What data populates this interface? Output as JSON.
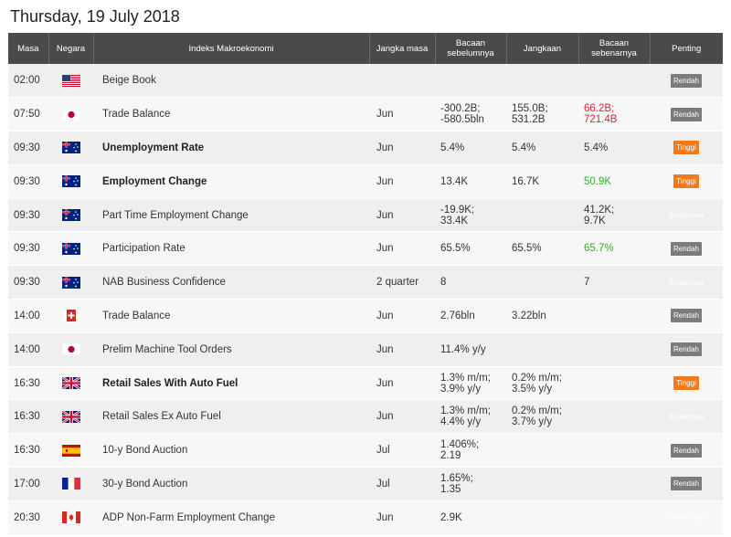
{
  "page_title": "Thursday, 19 July 2018",
  "columns": {
    "time": "Masa",
    "country": "Negara",
    "indicator": "Indeks Makroekonomi",
    "period": "Jangka masa",
    "previous": "Bacaan sebelumnya",
    "forecast": "Jangkaan",
    "actual": "Bacaan sebenarnya",
    "importance": "Penting"
  },
  "colors": {
    "header_bg": "#4a4a4a",
    "low": "#7b7b7b",
    "high": "#f07a1c",
    "medium": "#33a547",
    "red_value": "#e0262b",
    "green_value": "#3aa830"
  },
  "rows": [
    {
      "time": "02:00",
      "flag": "us-flag-icon",
      "indicator": "Beige Book",
      "bold": false,
      "period": "",
      "previous": "",
      "forecast": "",
      "actual": "",
      "actual_color": "",
      "importance": "Rendah",
      "level": "low"
    },
    {
      "time": "07:50",
      "flag": "jp-flag-icon",
      "indicator": "Trade Balance",
      "bold": false,
      "period": "Jun",
      "previous": "-300.2B;\n-580.5bln",
      "forecast": "155.0B;\n531.2B",
      "actual": "66.2B;\n721.4B",
      "actual_color": "red",
      "importance": "Rendah",
      "level": "low"
    },
    {
      "time": "09:30",
      "flag": "au-flag-icon",
      "indicator": "Unemployment Rate",
      "bold": true,
      "period": "Jun",
      "previous": "5.4%",
      "forecast": "5.4%",
      "actual": "5.4%",
      "actual_color": "",
      "importance": "Tinggi",
      "level": "high"
    },
    {
      "time": "09:30",
      "flag": "au-flag-icon",
      "indicator": "Employment Change",
      "bold": true,
      "period": "Jun",
      "previous": "13.4K",
      "forecast": "16.7K",
      "actual": "50.9K",
      "actual_color": "green",
      "importance": "Tinggi",
      "level": "high"
    },
    {
      "time": "09:30",
      "flag": "au-flag-icon",
      "indicator": "Part Time Employment Change",
      "bold": false,
      "period": "Jun",
      "previous": "-19.9K;\n33.4K",
      "forecast": "",
      "actual": "41.2K;\n9.7K",
      "actual_color": "",
      "importance": "Sederhana",
      "level": "medium"
    },
    {
      "time": "09:30",
      "flag": "au-flag-icon",
      "indicator": "Participation Rate",
      "bold": false,
      "period": "Jun",
      "previous": "65.5%",
      "forecast": "65.5%",
      "actual": "65.7%",
      "actual_color": "green",
      "importance": "Rendah",
      "level": "low"
    },
    {
      "time": "09:30",
      "flag": "au-flag-icon",
      "indicator": "NAB Business Confidence",
      "bold": false,
      "period": "2 quarter",
      "previous": "8",
      "forecast": "",
      "actual": "7",
      "actual_color": "",
      "importance": "Sederhana",
      "level": "medium"
    },
    {
      "time": "14:00",
      "flag": "ch-flag-icon",
      "indicator": "Trade Balance",
      "bold": false,
      "period": "Jun",
      "previous": "2.76bln",
      "forecast": "3.22bln",
      "actual": "",
      "actual_color": "",
      "importance": "Rendah",
      "level": "low"
    },
    {
      "time": "14:00",
      "flag": "jp-flag-icon",
      "indicator": "Prelim Machine Tool Orders",
      "bold": false,
      "period": "Jun",
      "previous": "11.4% y/y",
      "forecast": "",
      "actual": "",
      "actual_color": "",
      "importance": "Rendah",
      "level": "low"
    },
    {
      "time": "16:30",
      "flag": "gb-flag-icon",
      "indicator": "Retail Sales With Auto Fuel",
      "bold": true,
      "period": "Jun",
      "previous": "1.3% m/m;\n3.9% y/y",
      "forecast": "0.2% m/m;\n3.5% y/y",
      "actual": "",
      "actual_color": "",
      "importance": "Tinggi",
      "level": "high"
    },
    {
      "time": "16:30",
      "flag": "gb-flag-icon",
      "indicator": "Retail Sales Ex Auto Fuel",
      "bold": false,
      "period": "Jun",
      "previous": "1.3% m/m;\n4.4% y/y",
      "forecast": "0.2% m/m;\n3.7% y/y",
      "actual": "",
      "actual_color": "",
      "importance": "Sederhana",
      "level": "medium"
    },
    {
      "time": "16:30",
      "flag": "es-flag-icon",
      "indicator": "10-y Bond Auction",
      "bold": false,
      "period": "Jul",
      "previous": "1.406%;\n2.19",
      "forecast": "",
      "actual": "",
      "actual_color": "",
      "importance": "Rendah",
      "level": "low"
    },
    {
      "time": "17:00",
      "flag": "fr-flag-icon",
      "indicator": "30-y Bond Auction",
      "bold": false,
      "period": "Jul",
      "previous": "1.65%;\n1.35",
      "forecast": "",
      "actual": "",
      "actual_color": "",
      "importance": "Rendah",
      "level": "low"
    },
    {
      "time": "20:30",
      "flag": "ca-flag-icon",
      "indicator": "ADP Non-Farm Employment Change",
      "bold": false,
      "period": "Jun",
      "previous": "2.9K",
      "forecast": "",
      "actual": "",
      "actual_color": "",
      "importance": "Sederhana",
      "level": "medium"
    }
  ]
}
